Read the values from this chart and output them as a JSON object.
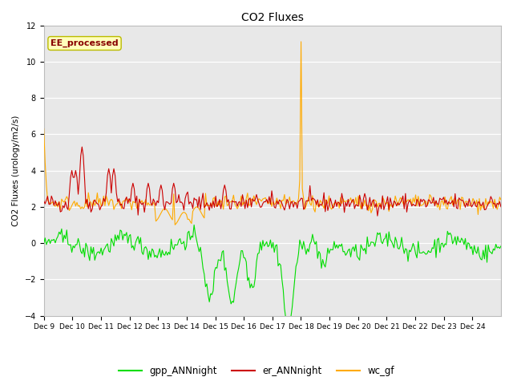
{
  "title": "CO2 Fluxes",
  "ylabel": "CO2 Fluxes (urology/m2/s)",
  "ylim": [
    -4,
    12
  ],
  "yticks": [
    -4,
    -2,
    0,
    2,
    4,
    6,
    8,
    10,
    12
  ],
  "n_points": 360,
  "gpp_color": "#00dd00",
  "er_color": "#cc0000",
  "wc_color": "#ffaa00",
  "annotation_text": "EE_processed",
  "annotation_color": "#880000",
  "annotation_bg": "#ffffbb",
  "plot_bg": "#e8e8e8",
  "legend_items": [
    "gpp_ANNnight",
    "er_ANNnight",
    "wc_gf"
  ],
  "xtick_labels": [
    "Dec 9",
    "Dec 10",
    "Dec 11",
    "Dec 12",
    "Dec 13",
    "Dec 14",
    "Dec 15",
    "Dec 16",
    "Dec 17",
    "Dec 18",
    "Dec 19",
    "Dec 20",
    "Dec 21",
    "Dec 22",
    "Dec 23",
    "Dec 24"
  ],
  "figsize": [
    6.4,
    4.8
  ],
  "dpi": 100
}
